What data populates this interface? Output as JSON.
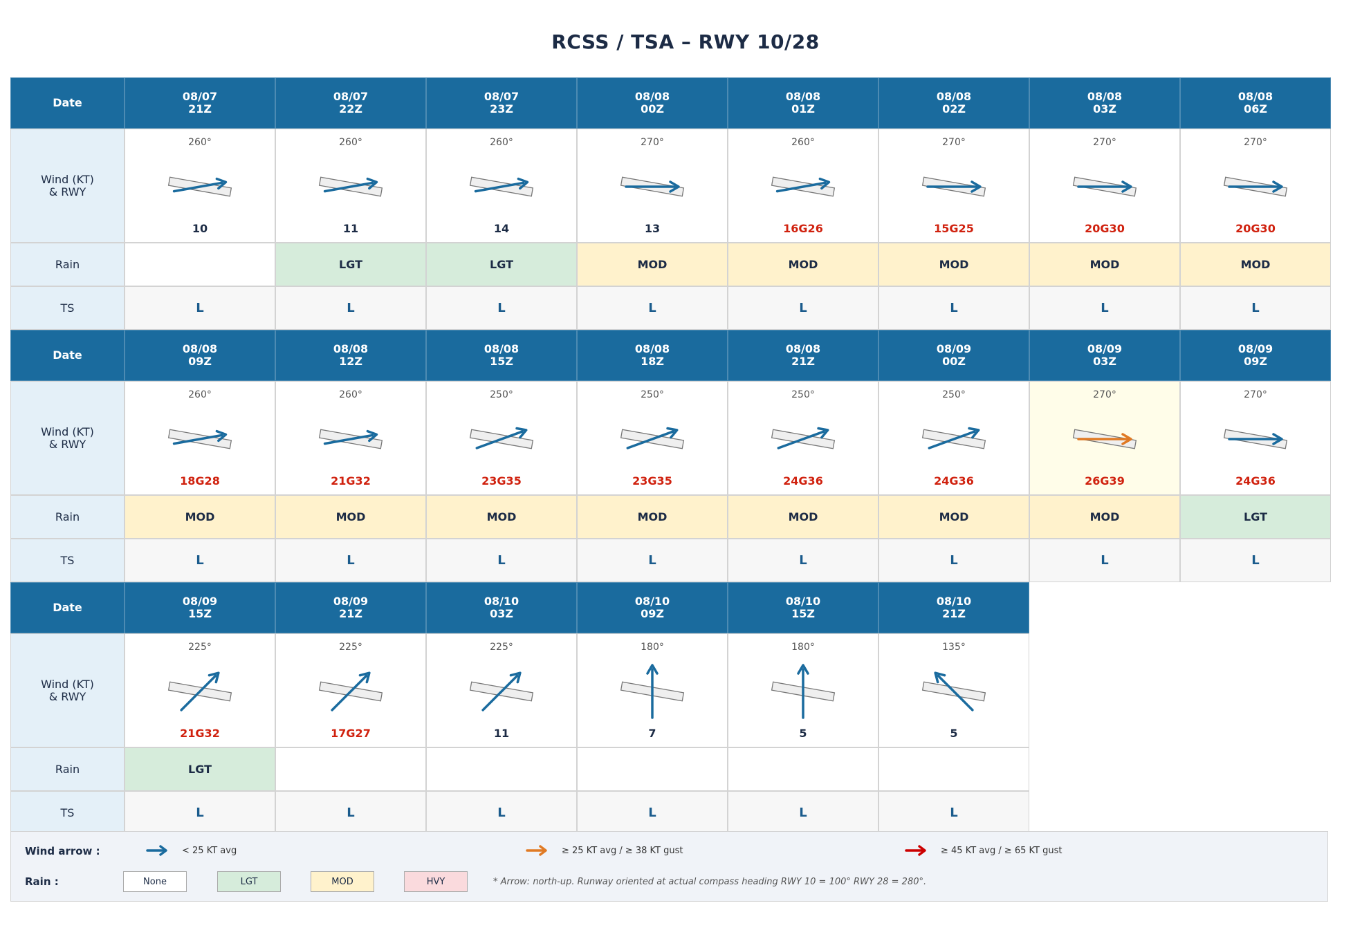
{
  "title": "RCSS / TSA  –  RWY 10/28",
  "labels": {
    "date": "Date",
    "wind_line1": "Wind (KT)",
    "wind_line2": "& RWY",
    "rain": "Rain",
    "ts": "TS"
  },
  "colors": {
    "header": "#1a6b9e",
    "arrow_normal": "#1a6b9e",
    "arrow_strong": "#e07a24",
    "arrow_severe": "#cc0000",
    "rain_lgt": "#d6ecdb",
    "rain_mod": "#fff2cc",
    "rain_hvy": "#fadadd",
    "strong_speed_text": "#d0210e"
  },
  "blocks": [
    {
      "columns": [
        {
          "date": "08/07",
          "time": "21Z",
          "dir": "260°",
          "dir_deg": 260,
          "speed": "10",
          "strong": false,
          "arrow": "normal",
          "rain": "",
          "ts": "L"
        },
        {
          "date": "08/07",
          "time": "22Z",
          "dir": "260°",
          "dir_deg": 260,
          "speed": "11",
          "strong": false,
          "arrow": "normal",
          "rain": "LGT",
          "ts": "L"
        },
        {
          "date": "08/07",
          "time": "23Z",
          "dir": "260°",
          "dir_deg": 260,
          "speed": "14",
          "strong": false,
          "arrow": "normal",
          "rain": "LGT",
          "ts": "L"
        },
        {
          "date": "08/08",
          "time": "00Z",
          "dir": "270°",
          "dir_deg": 270,
          "speed": "13",
          "strong": false,
          "arrow": "normal",
          "rain": "MOD",
          "ts": "L"
        },
        {
          "date": "08/08",
          "time": "01Z",
          "dir": "260°",
          "dir_deg": 260,
          "speed": "16G26",
          "strong": true,
          "arrow": "normal",
          "rain": "MOD",
          "ts": "L"
        },
        {
          "date": "08/08",
          "time": "02Z",
          "dir": "270°",
          "dir_deg": 270,
          "speed": "15G25",
          "strong": true,
          "arrow": "normal",
          "rain": "MOD",
          "ts": "L"
        },
        {
          "date": "08/08",
          "time": "03Z",
          "dir": "270°",
          "dir_deg": 270,
          "speed": "20G30",
          "strong": true,
          "arrow": "normal",
          "rain": "MOD",
          "ts": "L"
        },
        {
          "date": "08/08",
          "time": "06Z",
          "dir": "270°",
          "dir_deg": 270,
          "speed": "20G30",
          "strong": true,
          "arrow": "normal",
          "rain": "MOD",
          "ts": "L"
        }
      ]
    },
    {
      "columns": [
        {
          "date": "08/08",
          "time": "09Z",
          "dir": "260°",
          "dir_deg": 260,
          "speed": "18G28",
          "strong": true,
          "arrow": "normal",
          "rain": "MOD",
          "ts": "L"
        },
        {
          "date": "08/08",
          "time": "12Z",
          "dir": "260°",
          "dir_deg": 260,
          "speed": "21G32",
          "strong": true,
          "arrow": "normal",
          "rain": "MOD",
          "ts": "L"
        },
        {
          "date": "08/08",
          "time": "15Z",
          "dir": "250°",
          "dir_deg": 250,
          "speed": "23G35",
          "strong": true,
          "arrow": "normal",
          "rain": "MOD",
          "ts": "L"
        },
        {
          "date": "08/08",
          "time": "18Z",
          "dir": "250°",
          "dir_deg": 250,
          "speed": "23G35",
          "strong": true,
          "arrow": "normal",
          "rain": "MOD",
          "ts": "L"
        },
        {
          "date": "08/08",
          "time": "21Z",
          "dir": "250°",
          "dir_deg": 250,
          "speed": "24G36",
          "strong": true,
          "arrow": "normal",
          "rain": "MOD",
          "ts": "L"
        },
        {
          "date": "08/09",
          "time": "00Z",
          "dir": "250°",
          "dir_deg": 250,
          "speed": "24G36",
          "strong": true,
          "arrow": "normal",
          "rain": "MOD",
          "ts": "L"
        },
        {
          "date": "08/09",
          "time": "03Z",
          "dir": "270°",
          "dir_deg": 270,
          "speed": "26G39",
          "strong": true,
          "arrow": "strong",
          "highlight": true,
          "rain": "MOD",
          "ts": "L"
        },
        {
          "date": "08/09",
          "time": "09Z",
          "dir": "270°",
          "dir_deg": 270,
          "speed": "24G36",
          "strong": true,
          "arrow": "normal",
          "rain": "LGT",
          "ts": "L"
        }
      ]
    },
    {
      "columns": [
        {
          "date": "08/09",
          "time": "15Z",
          "dir": "225°",
          "dir_deg": 225,
          "speed": "21G32",
          "strong": true,
          "arrow": "normal",
          "rain": "LGT",
          "ts": "L"
        },
        {
          "date": "08/09",
          "time": "21Z",
          "dir": "225°",
          "dir_deg": 225,
          "speed": "17G27",
          "strong": true,
          "arrow": "normal",
          "rain": "",
          "ts": "L"
        },
        {
          "date": "08/10",
          "time": "03Z",
          "dir": "225°",
          "dir_deg": 225,
          "speed": "11",
          "strong": false,
          "arrow": "normal",
          "rain": "",
          "ts": "L"
        },
        {
          "date": "08/10",
          "time": "09Z",
          "dir": "180°",
          "dir_deg": 180,
          "speed": "7",
          "strong": false,
          "arrow": "normal",
          "rain": "",
          "ts": "L"
        },
        {
          "date": "08/10",
          "time": "15Z",
          "dir": "180°",
          "dir_deg": 180,
          "speed": "5",
          "strong": false,
          "arrow": "normal",
          "rain": "",
          "ts": "L"
        },
        {
          "date": "08/10",
          "time": "21Z",
          "dir": "135°",
          "dir_deg": 135,
          "speed": "5",
          "strong": false,
          "arrow": "normal",
          "rain": "",
          "ts": "L"
        }
      ]
    }
  ],
  "legend": {
    "wind_title": "Wind arrow :",
    "wind_items": [
      {
        "text": "< 25 KT avg",
        "arrow": "normal"
      },
      {
        "text": "≥ 25 KT avg / ≥ 38 KT gust",
        "arrow": "strong"
      },
      {
        "text": "≥ 45 KT avg / ≥ 65 KT gust",
        "arrow": "severe"
      }
    ],
    "rain_title": "Rain :",
    "rain_items": [
      {
        "text": "None",
        "cls": "NONE"
      },
      {
        "text": "LGT",
        "cls": "LGT"
      },
      {
        "text": "MOD",
        "cls": "MOD"
      },
      {
        "text": "HVY",
        "cls": "HVY"
      }
    ],
    "note": "* Arrow: north-up.  Runway oriented at actual compass heading  RWY 10 = 100°  RWY 28 = 280°."
  }
}
